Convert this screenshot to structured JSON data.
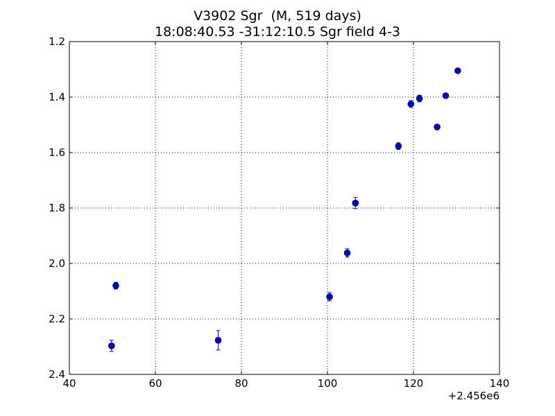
{
  "chart_data": {
    "type": "scatter",
    "title": "V3902 Sgr  (M, 519 days)",
    "subtitle": "18:08:40.53 -31:12:10.5 Sgr field 4-3",
    "xlabel": "",
    "ylabel": "",
    "x_offset_label": "+2.456e6",
    "xlim": [
      40,
      140
    ],
    "ylim": [
      2.4,
      1.2
    ],
    "y_inverted": true,
    "xticks": [
      40,
      60,
      80,
      100,
      120,
      140
    ],
    "xtick_labels": [
      "40",
      "60",
      "80",
      "100",
      "120",
      "140"
    ],
    "yticks": [
      1.2,
      1.4,
      1.6,
      1.8,
      2.0,
      2.2,
      2.4
    ],
    "ytick_labels": [
      "1.2",
      "1.4",
      "1.6",
      "1.8",
      "2.0",
      "2.2",
      "2.4"
    ],
    "grid": true,
    "marker_color": "#0000cc",
    "series": [
      {
        "points": [
          {
            "x": 49.8,
            "y": 2.297,
            "err": 0.02
          },
          {
            "x": 50.8,
            "y": 2.08,
            "err": 0.012
          },
          {
            "x": 74.6,
            "y": 2.277,
            "err": 0.035
          },
          {
            "x": 100.5,
            "y": 2.12,
            "err": 0.015
          },
          {
            "x": 104.6,
            "y": 1.962,
            "err": 0.015
          },
          {
            "x": 106.5,
            "y": 1.782,
            "err": 0.02
          },
          {
            "x": 116.5,
            "y": 1.577,
            "err": 0.012
          },
          {
            "x": 119.4,
            "y": 1.425,
            "err": 0.012
          },
          {
            "x": 121.4,
            "y": 1.405,
            "err": 0.012
          },
          {
            "x": 125.5,
            "y": 1.508,
            "err": 0.008
          },
          {
            "x": 127.5,
            "y": 1.395,
            "err": 0.006
          },
          {
            "x": 130.3,
            "y": 1.305,
            "err": 0.006
          }
        ]
      }
    ]
  }
}
